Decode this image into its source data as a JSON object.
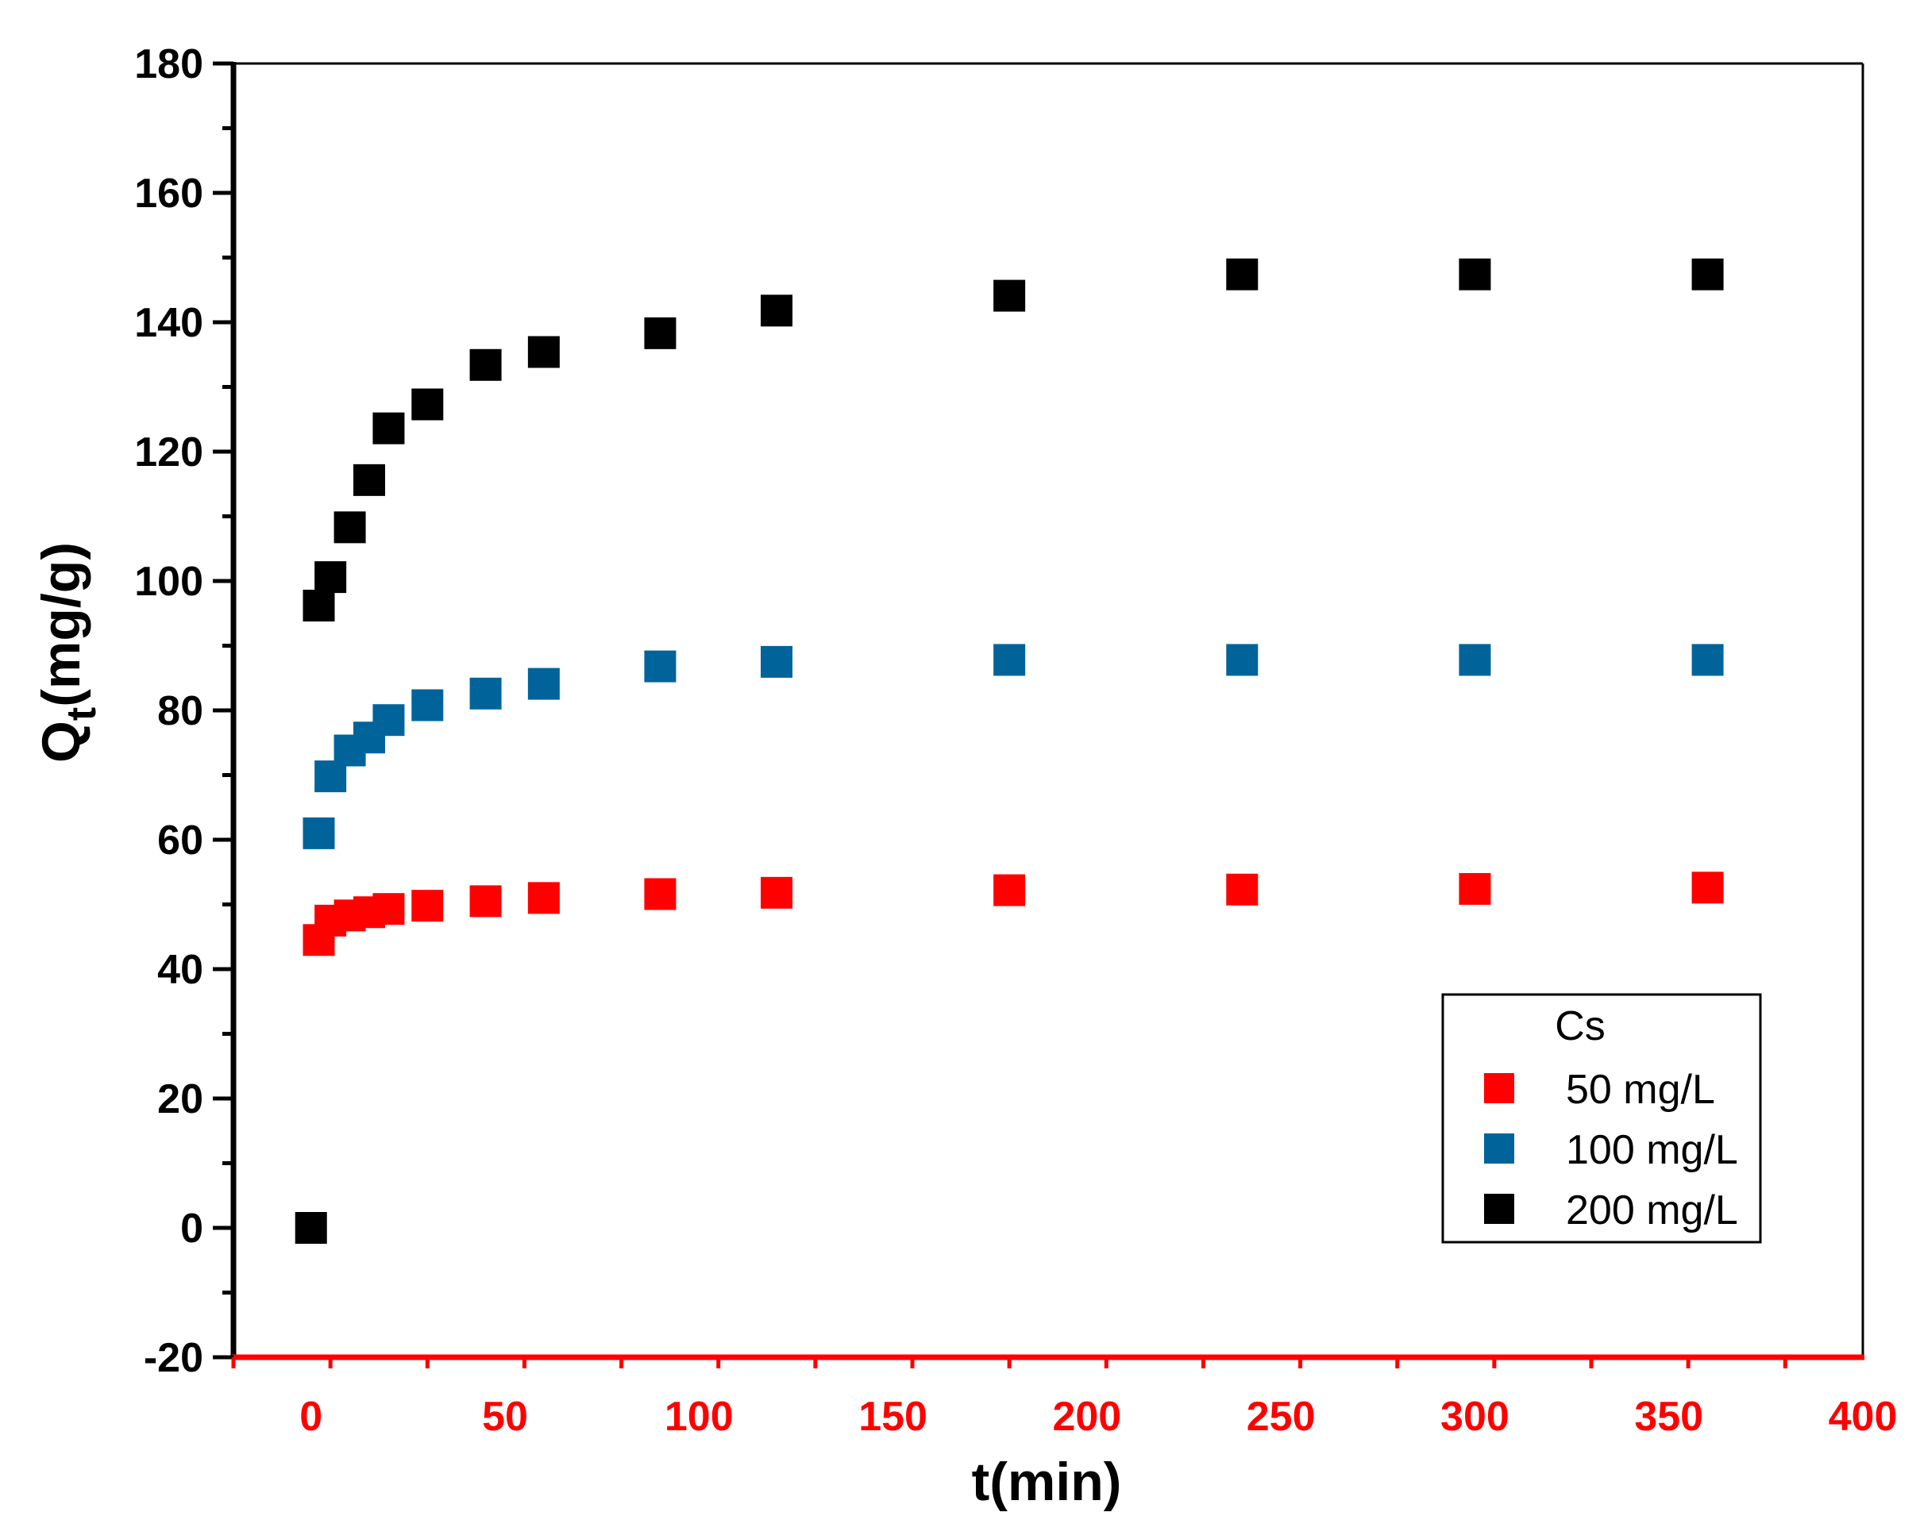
{
  "chart_data": {
    "type": "scatter",
    "title": "",
    "xlabel": "t(min)",
    "ylabel_main": "Q",
    "ylabel_sub": "t",
    "ylabel_rest": "(mg/g)",
    "xlim": [
      -20,
      400
    ],
    "ylim": [
      -20,
      180
    ],
    "xticks": [
      0,
      50,
      100,
      150,
      200,
      250,
      300,
      350,
      400
    ],
    "yticks": [
      -20,
      0,
      20,
      40,
      60,
      80,
      100,
      120,
      140,
      160,
      180
    ],
    "x_minor_step": 25,
    "y_minor_step": 10,
    "x_axis_color": "#ff0000",
    "y_axis_color": "#000000",
    "grid": false,
    "legend": {
      "title": "Cs",
      "position": "bottom-right"
    },
    "series": [
      {
        "name": "50 mg/L",
        "color": "#ff0000",
        "points": [
          [
            2,
            44.5
          ],
          [
            5,
            47.5
          ],
          [
            10,
            48.3
          ],
          [
            15,
            48.8
          ],
          [
            20,
            49.3
          ],
          [
            30,
            49.8
          ],
          [
            45,
            50.5
          ],
          [
            60,
            51.0
          ],
          [
            90,
            51.6
          ],
          [
            120,
            51.8
          ],
          [
            180,
            52.2
          ],
          [
            240,
            52.3
          ],
          [
            300,
            52.4
          ],
          [
            360,
            52.6
          ]
        ]
      },
      {
        "name": "100 mg/L",
        "color": "#00649a",
        "points": [
          [
            2,
            61
          ],
          [
            5,
            69.8
          ],
          [
            10,
            73.8
          ],
          [
            15,
            75.8
          ],
          [
            20,
            78.5
          ],
          [
            30,
            80.8
          ],
          [
            45,
            82.6
          ],
          [
            60,
            84.1
          ],
          [
            90,
            86.8
          ],
          [
            120,
            87.5
          ],
          [
            180,
            87.8
          ],
          [
            240,
            87.8
          ],
          [
            300,
            87.8
          ],
          [
            360,
            87.8
          ]
        ]
      },
      {
        "name": "200 mg/L",
        "color": "#000000",
        "points": [
          [
            0,
            0
          ],
          [
            2,
            96.2
          ],
          [
            5,
            100.6
          ],
          [
            10,
            108.3
          ],
          [
            15,
            115.6
          ],
          [
            20,
            123.6
          ],
          [
            30,
            127.3
          ],
          [
            45,
            133.4
          ],
          [
            60,
            135.4
          ],
          [
            90,
            138.3
          ],
          [
            120,
            141.8
          ],
          [
            180,
            144.1
          ],
          [
            240,
            147.4
          ],
          [
            300,
            147.4
          ],
          [
            360,
            147.4
          ]
        ]
      }
    ]
  }
}
